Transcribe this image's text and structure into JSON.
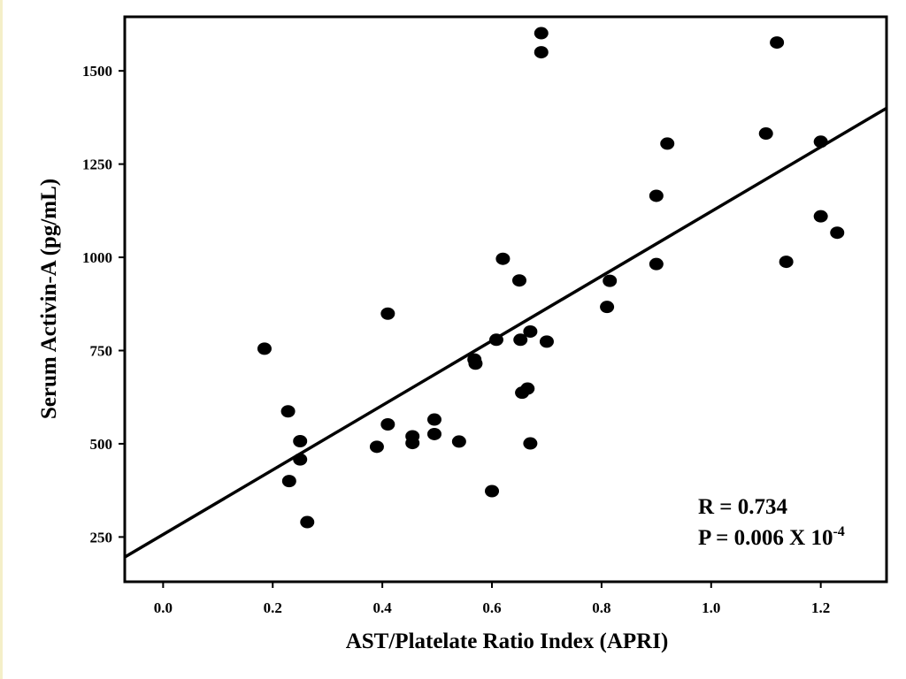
{
  "chart_data": {
    "type": "scatter",
    "title": "",
    "xlabel": "AST/Platelate Ratio Index (APRI)",
    "ylabel": "Serum Activin-A (pg/mL)",
    "xlim": [
      -0.07,
      1.32
    ],
    "ylim": [
      130,
      1645
    ],
    "x_ticks": [
      0.0,
      0.2,
      0.4,
      0.6,
      0.8,
      1.0,
      1.2
    ],
    "x_tick_labels": [
      "0.0",
      "0.2",
      "0.4",
      "0.6",
      "0.8",
      "1.0",
      "1.2"
    ],
    "y_ticks": [
      250,
      500,
      750,
      1000,
      1250,
      1500
    ],
    "y_tick_labels": [
      "250",
      "500",
      "750",
      "1000",
      "1250",
      "1500"
    ],
    "points": [
      {
        "x": 0.185,
        "y": 755
      },
      {
        "x": 0.228,
        "y": 587
      },
      {
        "x": 0.23,
        "y": 400
      },
      {
        "x": 0.25,
        "y": 507
      },
      {
        "x": 0.25,
        "y": 458
      },
      {
        "x": 0.263,
        "y": 290
      },
      {
        "x": 0.39,
        "y": 492
      },
      {
        "x": 0.41,
        "y": 849
      },
      {
        "x": 0.41,
        "y": 552
      },
      {
        "x": 0.455,
        "y": 520
      },
      {
        "x": 0.455,
        "y": 502
      },
      {
        "x": 0.495,
        "y": 565
      },
      {
        "x": 0.495,
        "y": 526
      },
      {
        "x": 0.54,
        "y": 506
      },
      {
        "x": 0.568,
        "y": 726
      },
      {
        "x": 0.57,
        "y": 715
      },
      {
        "x": 0.6,
        "y": 373
      },
      {
        "x": 0.608,
        "y": 779
      },
      {
        "x": 0.62,
        "y": 996
      },
      {
        "x": 0.65,
        "y": 938
      },
      {
        "x": 0.652,
        "y": 779
      },
      {
        "x": 0.655,
        "y": 637
      },
      {
        "x": 0.665,
        "y": 648
      },
      {
        "x": 0.67,
        "y": 801
      },
      {
        "x": 0.67,
        "y": 501
      },
      {
        "x": 0.69,
        "y": 1601
      },
      {
        "x": 0.69,
        "y": 1550
      },
      {
        "x": 0.7,
        "y": 774
      },
      {
        "x": 0.81,
        "y": 867
      },
      {
        "x": 0.815,
        "y": 937
      },
      {
        "x": 0.9,
        "y": 1165
      },
      {
        "x": 0.9,
        "y": 982
      },
      {
        "x": 0.92,
        "y": 1305
      },
      {
        "x": 1.1,
        "y": 1332
      },
      {
        "x": 1.12,
        "y": 1576
      },
      {
        "x": 1.137,
        "y": 988
      },
      {
        "x": 1.2,
        "y": 1310
      },
      {
        "x": 1.2,
        "y": 1110
      },
      {
        "x": 1.23,
        "y": 1066
      }
    ],
    "fit_line": {
      "x": [
        -0.07,
        1.32
      ],
      "y": [
        196,
        1400
      ]
    },
    "grid": false,
    "annotations": {
      "r_text": "R = 0.734",
      "p_text": "P = 0.006 X 10",
      "p_exponent": "-4"
    },
    "colors": {
      "points": "#000000",
      "line": "#000000",
      "background": "#ffffff"
    }
  }
}
